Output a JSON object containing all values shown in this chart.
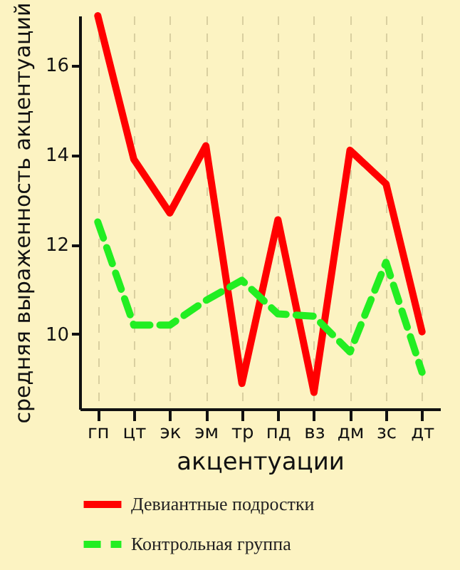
{
  "chart_data": {
    "type": "line",
    "xlabel": "акцентуации",
    "ylabel": "средняя выраженность акцентуаций",
    "categories": [
      "гп",
      "цт",
      "эк",
      "эм",
      "тр",
      "пд",
      "вз",
      "дм",
      "зс",
      "дт"
    ],
    "series": [
      {
        "name": "Девиантные подростки",
        "color": "#ff0000",
        "line_style": "solid",
        "values": [
          17.1,
          13.9,
          12.7,
          14.2,
          8.9,
          12.55,
          8.7,
          14.1,
          13.35,
          10.05
        ]
      },
      {
        "name": "Контрольная группа",
        "color": "#22ee22",
        "line_style": "dashed",
        "values": [
          12.5,
          10.2,
          10.2,
          10.75,
          11.2,
          10.45,
          10.4,
          9.6,
          11.6,
          9.15
        ]
      }
    ],
    "ylim": [
      8.33,
      17.1
    ],
    "yticks": [
      10,
      12,
      14,
      16
    ],
    "grid": "x",
    "legend": "bottom left",
    "marker": "none"
  }
}
